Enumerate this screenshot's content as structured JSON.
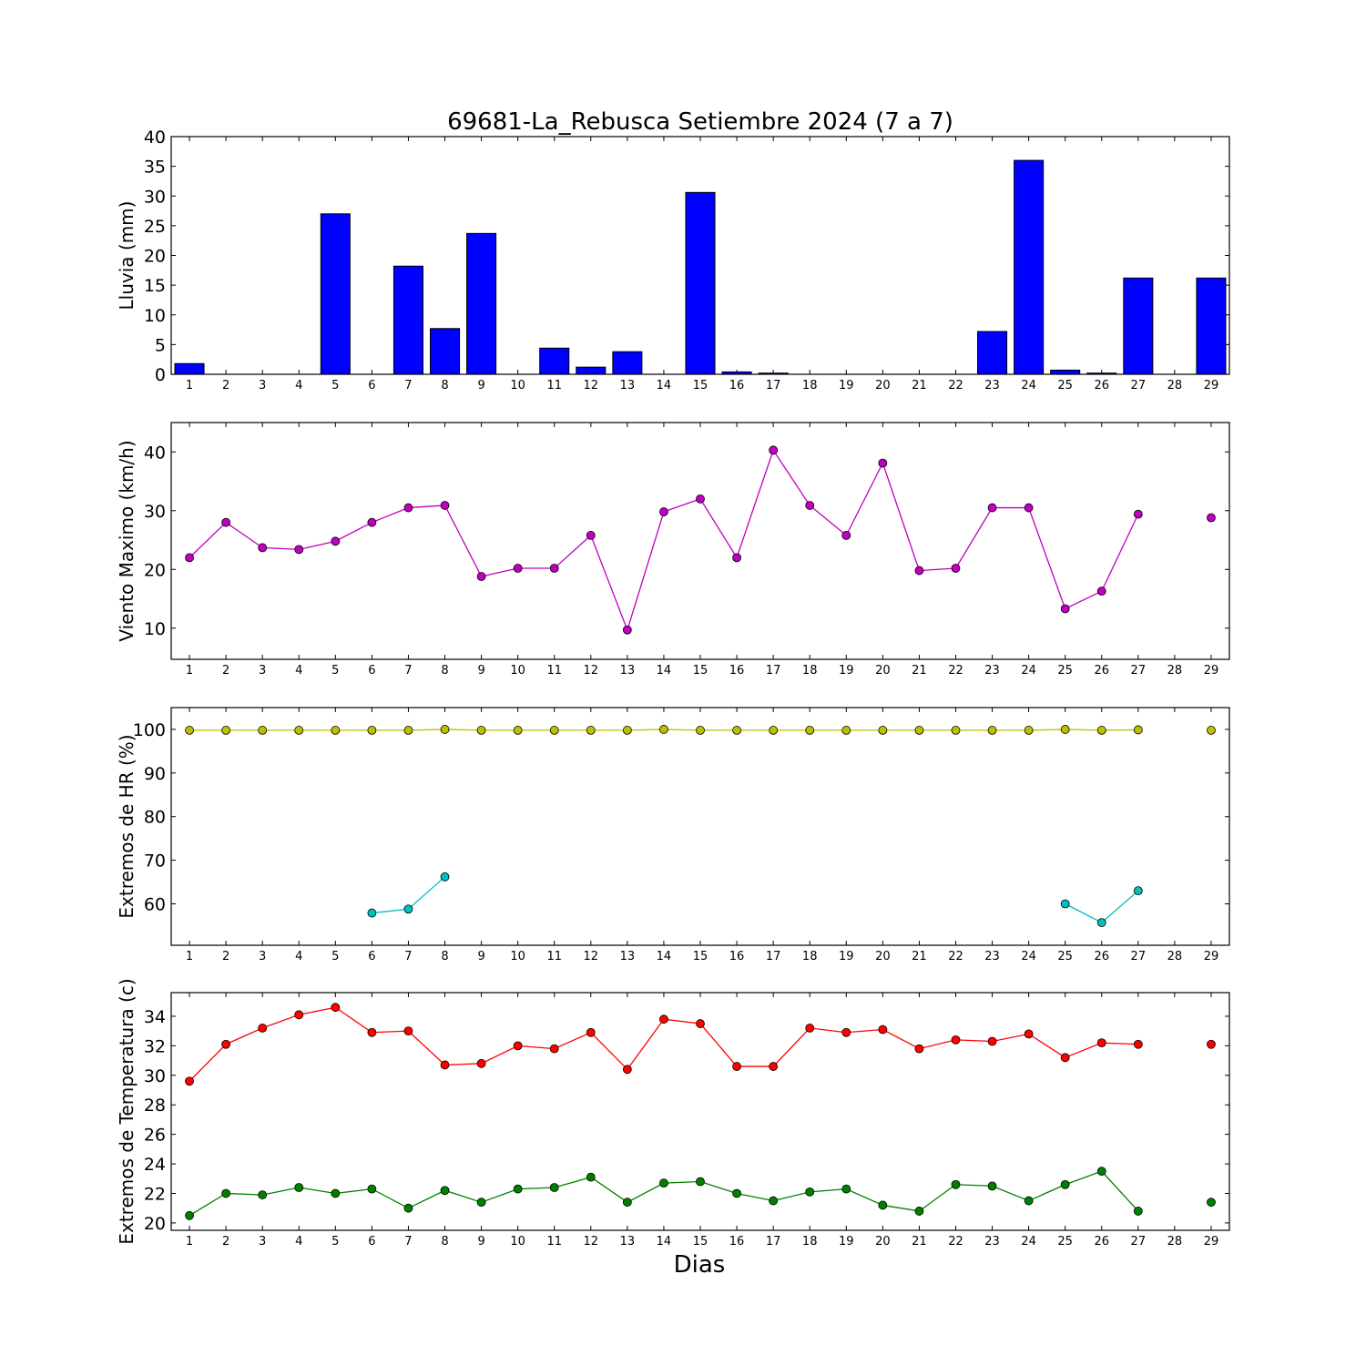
{
  "title": "69681-La_Rebusca Setiembre 2024  (7 a 7)",
  "xlabel": "Dias",
  "chart_data": [
    {
      "type": "bar",
      "ylabel": "Lluvia (mm)",
      "x": [
        1,
        2,
        3,
        4,
        5,
        6,
        7,
        8,
        9,
        10,
        11,
        12,
        13,
        14,
        15,
        16,
        17,
        18,
        19,
        20,
        21,
        22,
        23,
        24,
        25,
        26,
        27,
        28,
        29
      ],
      "xlim": [
        0.5,
        29.5
      ],
      "ylim": [
        0,
        40
      ],
      "yticks": [
        0,
        5,
        10,
        15,
        20,
        25,
        30,
        35,
        40
      ],
      "grid": false,
      "colors": {
        "bar": "#0000ff"
      },
      "series": [
        {
          "values": [
            1.8,
            0,
            0,
            0,
            27.0,
            0,
            18.2,
            7.7,
            23.7,
            0,
            4.4,
            1.2,
            3.8,
            null,
            30.6,
            0.4,
            0.2,
            0,
            0,
            0,
            0,
            null,
            7.2,
            36.0,
            0.7,
            0.2,
            16.2,
            null,
            16.2
          ]
        }
      ]
    },
    {
      "type": "line",
      "ylabel": "Viento Maximo (km/h)",
      "x": [
        1,
        2,
        3,
        4,
        5,
        6,
        7,
        8,
        9,
        10,
        11,
        12,
        13,
        14,
        15,
        16,
        17,
        18,
        19,
        20,
        21,
        22,
        23,
        24,
        25,
        26,
        27,
        28,
        29
      ],
      "xlim": [
        0.5,
        29.5
      ],
      "ylim": [
        4.7,
        45
      ],
      "yticks": [
        10,
        20,
        30,
        40
      ],
      "grid": false,
      "colors": {
        "line": "#bf00bf"
      },
      "series": [
        {
          "values": [
            22.0,
            28.0,
            23.7,
            23.4,
            24.8,
            28.0,
            30.5,
            30.9,
            18.8,
            20.2,
            20.2,
            25.8,
            9.7,
            29.8,
            32.0,
            22.0,
            40.3,
            30.9,
            25.8,
            38.1,
            19.8,
            20.2,
            30.5,
            30.5,
            13.3,
            16.3,
            29.4,
            null,
            28.8
          ]
        }
      ]
    },
    {
      "type": "line",
      "ylabel": "Extremos de HR (%)",
      "x": [
        1,
        2,
        3,
        4,
        5,
        6,
        7,
        8,
        9,
        10,
        11,
        12,
        13,
        14,
        15,
        16,
        17,
        18,
        19,
        20,
        21,
        22,
        23,
        24,
        25,
        26,
        27,
        28,
        29
      ],
      "xlim": [
        0.5,
        29.5
      ],
      "ylim": [
        50.5,
        105
      ],
      "yticks": [
        60,
        70,
        80,
        90,
        100
      ],
      "grid": false,
      "colors": {
        "max": "#bfbf00",
        "min": "#00bfbf"
      },
      "series": [
        {
          "values": [
            99.8,
            99.8,
            99.8,
            99.8,
            99.8,
            99.8,
            99.8,
            100.0,
            99.8,
            99.8,
            99.8,
            99.8,
            99.8,
            100.0,
            99.8,
            99.8,
            99.8,
            99.8,
            99.8,
            99.8,
            99.8,
            99.8,
            99.8,
            99.8,
            100.0,
            99.8,
            99.9,
            null,
            99.8
          ]
        },
        {
          "values": [
            null,
            null,
            null,
            null,
            null,
            57.9,
            58.8,
            66.2,
            null,
            null,
            null,
            null,
            null,
            null,
            null,
            null,
            null,
            null,
            null,
            null,
            null,
            null,
            null,
            null,
            60.0,
            55.7,
            63.0,
            null,
            null
          ]
        }
      ]
    },
    {
      "type": "line",
      "ylabel": "Extremos de Temperatura (c)",
      "x": [
        1,
        2,
        3,
        4,
        5,
        6,
        7,
        8,
        9,
        10,
        11,
        12,
        13,
        14,
        15,
        16,
        17,
        18,
        19,
        20,
        21,
        22,
        23,
        24,
        25,
        26,
        27,
        28,
        29
      ],
      "xlim": [
        0.5,
        29.5
      ],
      "ylim": [
        19.5,
        35.6
      ],
      "yticks": [
        20,
        22,
        24,
        26,
        28,
        30,
        32,
        34
      ],
      "grid": false,
      "colors": {
        "max": "#ff0000",
        "min": "#008000"
      },
      "series": [
        {
          "values": [
            29.6,
            32.1,
            33.2,
            34.1,
            34.6,
            32.9,
            33.0,
            30.7,
            30.8,
            32.0,
            31.8,
            32.9,
            30.4,
            33.8,
            33.5,
            30.6,
            30.6,
            33.2,
            32.9,
            33.1,
            31.8,
            32.4,
            32.3,
            32.8,
            31.2,
            32.2,
            32.1,
            null,
            32.1
          ]
        },
        {
          "values": [
            20.5,
            22.0,
            21.9,
            22.4,
            22.0,
            22.3,
            21.0,
            22.2,
            21.4,
            22.3,
            22.4,
            23.1,
            21.4,
            22.7,
            22.8,
            22.0,
            21.5,
            22.1,
            22.3,
            21.2,
            20.8,
            22.6,
            22.5,
            21.5,
            22.6,
            23.5,
            20.8,
            null,
            21.4
          ]
        }
      ]
    }
  ]
}
